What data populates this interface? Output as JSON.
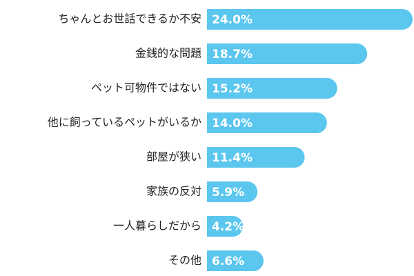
{
  "chart_data": {
    "type": "barh",
    "color": "#5bc6ee",
    "categories": [
      "ちゃんとお世話できるか不安",
      "金銭的な問題",
      "ペット可物件ではない",
      "他に飼っているペットがいるか",
      "部屋が狭い",
      "家族の反対",
      "一人暮らしだから",
      "その他"
    ],
    "values": [
      24.0,
      18.7,
      15.2,
      14.0,
      11.4,
      5.9,
      4.2,
      6.6
    ],
    "value_labels": [
      "24.0%",
      "18.7%",
      "15.2%",
      "14.0%",
      "11.4%",
      "5.9%",
      "4.2%",
      "6.6%"
    ]
  }
}
